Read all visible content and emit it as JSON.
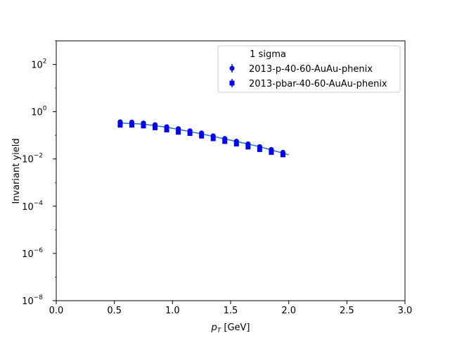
{
  "chart_data": {
    "type": "scatter",
    "xlabel_main": "p",
    "xlabel_sub": "T",
    "xlabel_unit": " [GeV]",
    "ylabel": "Invariant yield",
    "xlim": [
      0.0,
      3.0
    ],
    "ylim_log10": [
      -8,
      3
    ],
    "yscale": "log",
    "x_ticks": [
      {
        "value": 0.0,
        "label": "0.0"
      },
      {
        "value": 0.5,
        "label": "0.5"
      },
      {
        "value": 1.0,
        "label": "1.0"
      },
      {
        "value": 1.5,
        "label": "1.5"
      },
      {
        "value": 2.0,
        "label": "2.0"
      },
      {
        "value": 2.5,
        "label": "2.5"
      },
      {
        "value": 3.0,
        "label": "3.0"
      }
    ],
    "y_ticks": [
      {
        "exp": -8,
        "label": "10",
        "sup": "−8"
      },
      {
        "exp": -6,
        "label": "10",
        "sup": "−6"
      },
      {
        "exp": -4,
        "label": "10",
        "sup": "−4"
      },
      {
        "exp": -2,
        "label": "10",
        "sup": "−2"
      },
      {
        "exp": 0,
        "label": "10",
        "sup": "0"
      },
      {
        "exp": 2,
        "label": "10",
        "sup": "2"
      }
    ],
    "legend": {
      "title": "1 sigma",
      "placement": "top-right"
    },
    "series": [
      {
        "name": "2013-p-40-60-AuAu-phenix",
        "marker": "circle",
        "color": "#0000ff",
        "x": [
          0.55,
          0.65,
          0.75,
          0.85,
          0.95,
          1.05,
          1.15,
          1.25,
          1.35,
          1.45,
          1.55,
          1.65,
          1.75,
          1.85,
          1.95
        ],
        "y": [
          0.37,
          0.36,
          0.33,
          0.28,
          0.23,
          0.19,
          0.155,
          0.125,
          0.095,
          0.073,
          0.056,
          0.043,
          0.033,
          0.025,
          0.019
        ]
      },
      {
        "name": "2013-pbar-40-60-AuAu-phenix",
        "marker": "square",
        "color": "#0000ff",
        "x": [
          0.55,
          0.65,
          0.75,
          0.85,
          0.95,
          1.05,
          1.15,
          1.25,
          1.35,
          1.45,
          1.55,
          1.65,
          1.75,
          1.85,
          1.95
        ],
        "y": [
          0.27,
          0.27,
          0.25,
          0.21,
          0.17,
          0.135,
          0.12,
          0.093,
          0.072,
          0.055,
          0.043,
          0.032,
          0.025,
          0.019,
          0.015
        ]
      }
    ],
    "fit_line": {
      "color": "#1f77b4",
      "x": [
        0.55,
        0.75,
        0.95,
        1.15,
        1.35,
        1.55,
        1.75,
        2.0
      ],
      "y": [
        0.33,
        0.3,
        0.22,
        0.145,
        0.09,
        0.055,
        0.033,
        0.015
      ]
    }
  }
}
